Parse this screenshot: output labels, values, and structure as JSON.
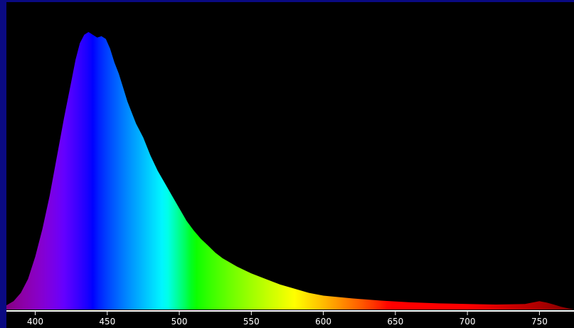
{
  "chart_data": {
    "type": "area",
    "title": "",
    "xlabel": "",
    "ylabel": "",
    "xlim": [
      380,
      774
    ],
    "ylim": [
      0,
      1
    ],
    "x_ticks": [
      "400",
      "450",
      "500",
      "550",
      "600",
      "650",
      "700",
      "750"
    ],
    "grid": false,
    "legend": "none",
    "series": [
      {
        "x": [
          380,
          385,
          390,
          395,
          400,
          405,
          410,
          415,
          420,
          425,
          428,
          431,
          434,
          437,
          440,
          443,
          446,
          449,
          452,
          455,
          458,
          461,
          464,
          467,
          470,
          475,
          480,
          485,
          490,
          495,
          500,
          505,
          510,
          515,
          520,
          525,
          530,
          540,
          550,
          560,
          570,
          580,
          590,
          600,
          620,
          640,
          660,
          680,
          700,
          720,
          740,
          745,
          750,
          755,
          760,
          765,
          770,
          774
        ],
        "values": [
          0.015,
          0.03,
          0.06,
          0.11,
          0.19,
          0.29,
          0.41,
          0.55,
          0.69,
          0.82,
          0.9,
          0.96,
          0.99,
          1.0,
          0.99,
          0.98,
          0.985,
          0.975,
          0.94,
          0.89,
          0.85,
          0.8,
          0.75,
          0.71,
          0.67,
          0.62,
          0.555,
          0.5,
          0.455,
          0.41,
          0.365,
          0.32,
          0.285,
          0.255,
          0.23,
          0.205,
          0.185,
          0.155,
          0.13,
          0.11,
          0.09,
          0.075,
          0.06,
          0.05,
          0.04,
          0.032,
          0.026,
          0.022,
          0.02,
          0.018,
          0.02,
          0.025,
          0.03,
          0.025,
          0.018,
          0.01,
          0.004,
          0.0
        ]
      }
    ],
    "colors": {
      "background": "#000000",
      "frame": "#0a0a82",
      "axis": "#ffffff",
      "text": "#ffffff"
    }
  }
}
